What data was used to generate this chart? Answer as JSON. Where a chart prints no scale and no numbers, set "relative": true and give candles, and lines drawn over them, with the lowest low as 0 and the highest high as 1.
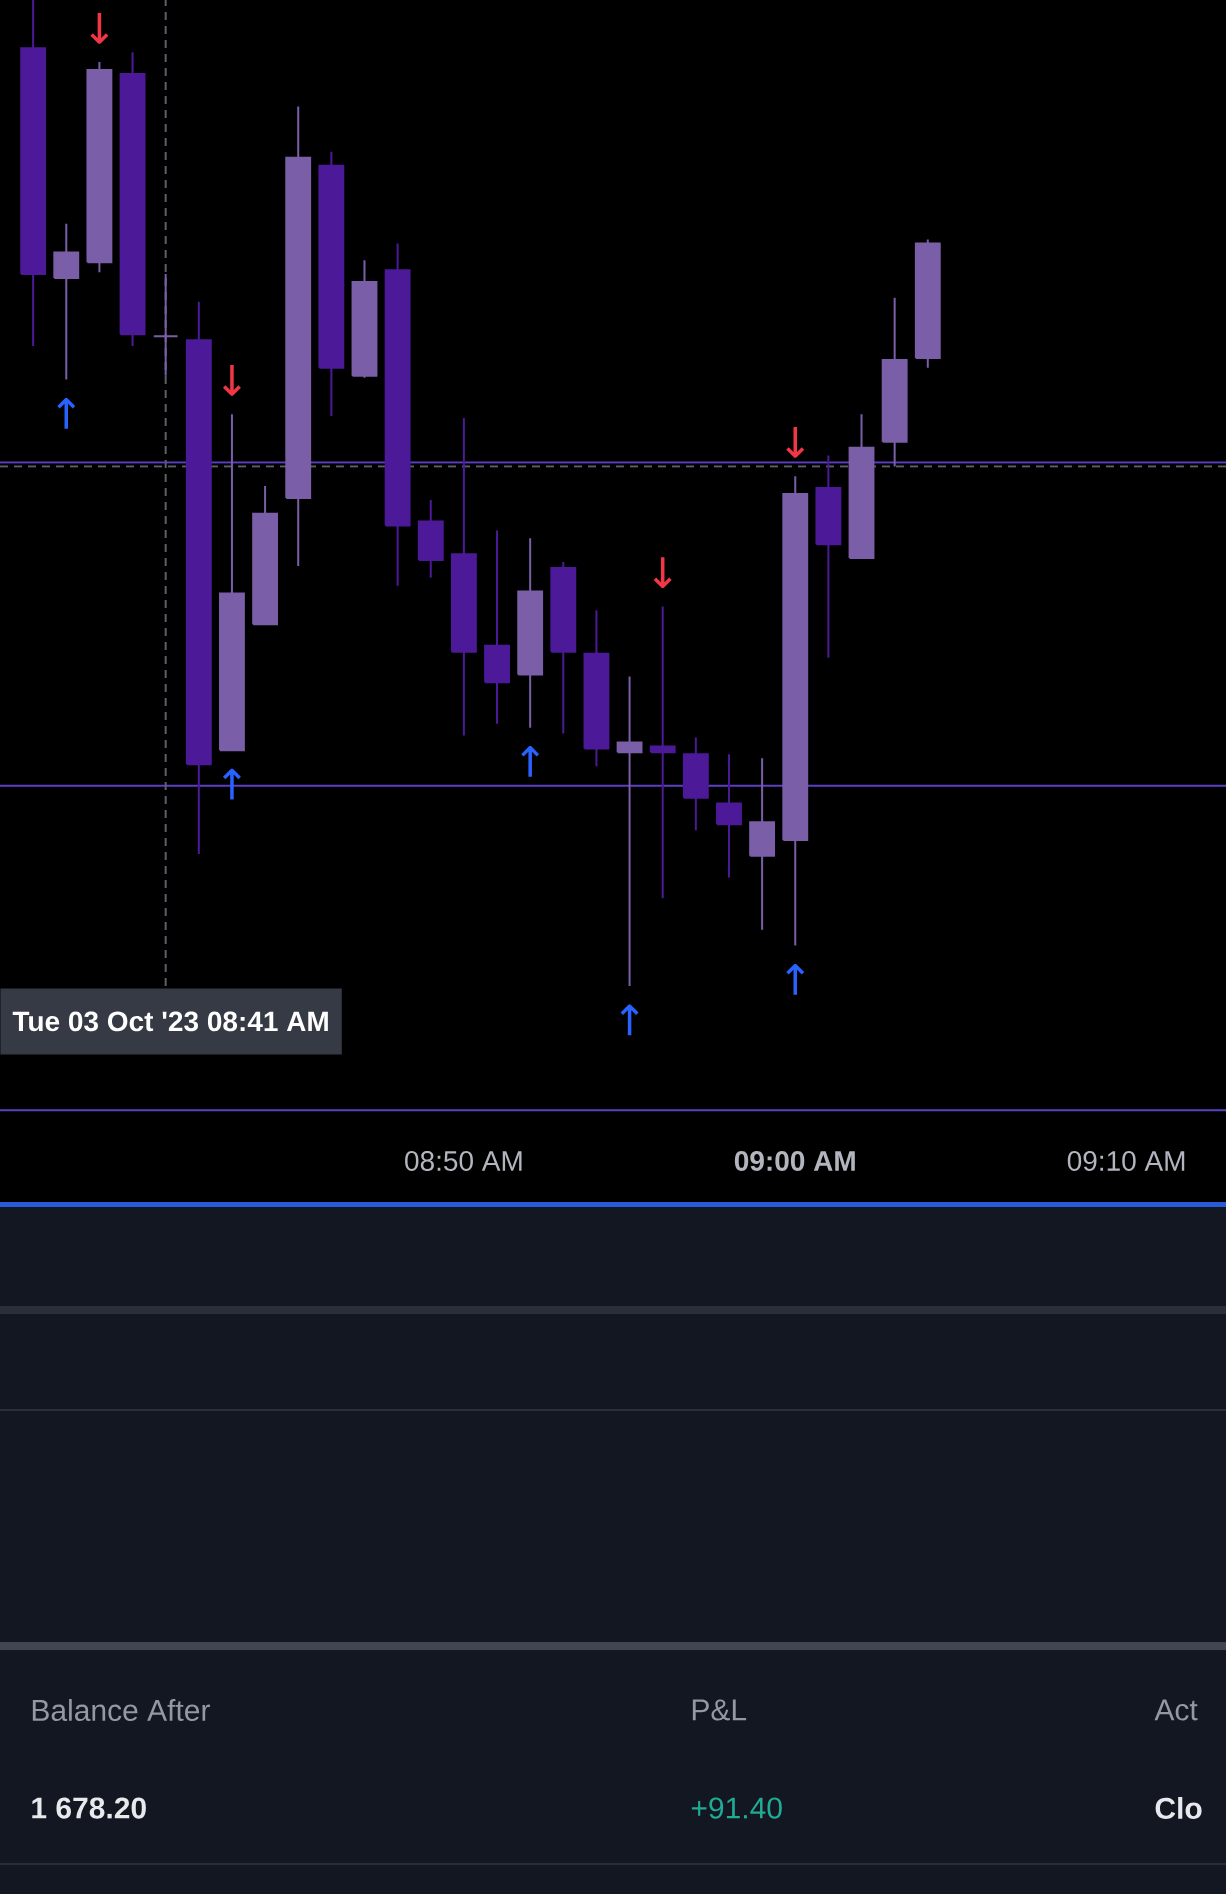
{
  "chart_data": {
    "type": "candlestick",
    "relative": true,
    "tick_labels": "x",
    "x": [
      "2023-10-03T08:37",
      "2023-10-03T08:38",
      "2023-10-03T08:39",
      "2023-10-03T08:40",
      "2023-10-03T08:41",
      "2023-10-03T08:42",
      "2023-10-03T08:43",
      "2023-10-03T08:44",
      "2023-10-03T08:45",
      "2023-10-03T08:46",
      "2023-10-03T08:47",
      "2023-10-03T08:48",
      "2023-10-03T08:49",
      "2023-10-03T08:50",
      "2023-10-03T08:51",
      "2023-10-03T08:52",
      "2023-10-03T08:53",
      "2023-10-03T08:54",
      "2023-10-03T08:55",
      "2023-10-03T08:56",
      "2023-10-03T08:57",
      "2023-10-03T08:58",
      "2023-10-03T08:59",
      "2023-10-03T09:00",
      "2023-10-03T09:01",
      "2023-10-03T09:02",
      "2023-10-03T09:03",
      "2023-10-03T09:04"
    ],
    "ohlc": [
      [
        0.951,
        1.0,
        0.649,
        0.722
      ],
      [
        0.718,
        0.773,
        0.615,
        0.744
      ],
      [
        0.734,
        0.937,
        0.724,
        0.929
      ],
      [
        0.925,
        0.947,
        0.649,
        0.661
      ],
      [
        0.659,
        0.722,
        0.619,
        0.659
      ],
      [
        0.655,
        0.694,
        0.134,
        0.225
      ],
      [
        0.239,
        0.58,
        0.239,
        0.398
      ],
      [
        0.367,
        0.507,
        0.367,
        0.479
      ],
      [
        0.495,
        0.892,
        0.426,
        0.84
      ],
      [
        0.832,
        0.846,
        0.578,
        0.627
      ],
      [
        0.619,
        0.736,
        0.617,
        0.714
      ],
      [
        0.726,
        0.753,
        0.406,
        0.467
      ],
      [
        0.471,
        0.493,
        0.414,
        0.432
      ],
      [
        0.438,
        0.576,
        0.254,
        0.339
      ],
      [
        0.345,
        0.462,
        0.266,
        0.308
      ],
      [
        0.316,
        0.454,
        0.262,
        0.4
      ],
      [
        0.424,
        0.43,
        0.256,
        0.339
      ],
      [
        0.337,
        0.381,
        0.223,
        0.241
      ],
      [
        0.237,
        0.314,
        0.0,
        0.247
      ],
      [
        0.243,
        0.385,
        0.089,
        0.237
      ],
      [
        0.235,
        0.252,
        0.158,
        0.191
      ],
      [
        0.185,
        0.235,
        0.11,
        0.164
      ],
      [
        0.132,
        0.231,
        0.057,
        0.166
      ],
      [
        0.148,
        0.517,
        0.041,
        0.499
      ],
      [
        0.505,
        0.538,
        0.333,
        0.448
      ],
      [
        0.434,
        0.58,
        0.434,
        0.546
      ],
      [
        0.552,
        0.698,
        0.527,
        0.635
      ],
      [
        0.637,
        0.757,
        0.627,
        0.753
      ]
    ],
    "colors": [
      "#4c1a98",
      "#7a5fa8",
      "#7a5fa8",
      "#4c1a98",
      "#7a5fa8",
      "#4c1a98",
      "#7a5fa8",
      "#7a5fa8",
      "#7a5fa8",
      "#4c1a98",
      "#7a5fa8",
      "#4c1a98",
      "#4c1a98",
      "#4c1a98",
      "#4c1a98",
      "#7a5fa8",
      "#4c1a98",
      "#4c1a98",
      "#7a5fa8",
      "#4c1a98",
      "#4c1a98",
      "#4c1a98",
      "#7a5fa8",
      "#7a5fa8",
      "#4c1a98",
      "#7a5fa8",
      "#7a5fa8",
      "#7a5fa8"
    ],
    "xlim": [
      "2023-10-03T08:36",
      "2023-10-03T09:13"
    ],
    "xticks": [
      {
        "value": "2023-10-03T08:50",
        "label": "08:50 AM"
      },
      {
        "value": "2023-10-03T09:00",
        "label": "09:00 AM"
      },
      {
        "value": "2023-10-03T09:10",
        "label": "09:10 AM"
      }
    ],
    "ref_lines": [
      {
        "axis": "y",
        "value": 0.531,
        "color": "#5b3fc4"
      },
      {
        "axis": "y",
        "value": 0.527,
        "color": "#5d606b",
        "line_style": "dashed"
      },
      {
        "axis": "y",
        "value": 0.203,
        "color": "#5b3fc4"
      },
      {
        "axis": "y",
        "value": -0.126,
        "color": "#5b3fc4"
      },
      {
        "axis": "x",
        "value": "2023-10-03T08:41",
        "label": "Tue 03 Oct '23 08:41 AM",
        "color": "#5d606b",
        "line_style": "dashed"
      }
    ],
    "annotations": [
      {
        "text": "↓",
        "x": "2023-10-03T08:39",
        "y": 0.937
      },
      {
        "text": "↑",
        "x": "2023-10-03T08:38",
        "y": 0.615
      },
      {
        "text": "↓",
        "x": "2023-10-03T08:43",
        "y": 0.58
      },
      {
        "text": "↑",
        "x": "2023-10-03T08:43",
        "y": 0.239
      },
      {
        "text": "↑",
        "x": "2023-10-03T08:52",
        "y": 0.262
      },
      {
        "text": "↑",
        "x": "2023-10-03T08:55",
        "y": 0.0
      },
      {
        "text": "↓",
        "x": "2023-10-03T08:56",
        "y": 0.385
      },
      {
        "text": "↓",
        "x": "2023-10-03T09:00",
        "y": 0.517
      },
      {
        "text": "↑",
        "x": "2023-10-03T09:00",
        "y": 0.041
      },
      "Balance After",
      "P&L",
      "Act",
      "1 678.20",
      "+91.40",
      "Clo"
    ]
  }
}
